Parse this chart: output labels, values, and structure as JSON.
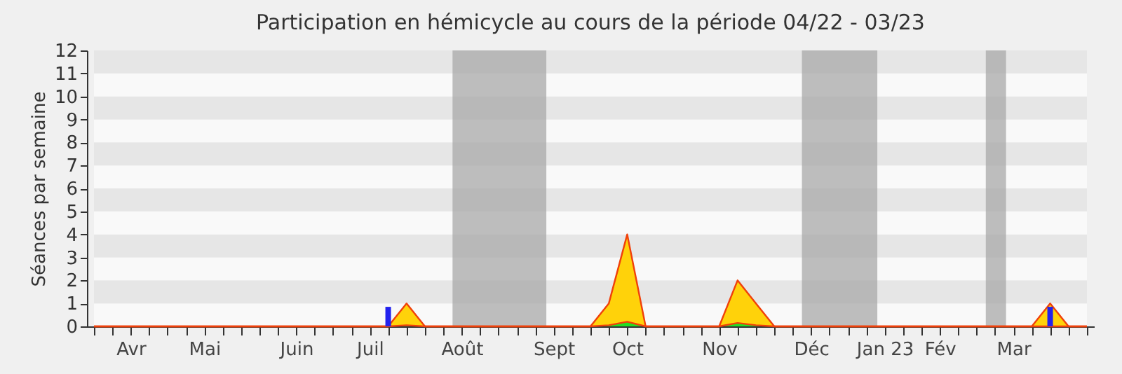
{
  "chart_data": {
    "type": "area",
    "title": "Participation en hémicycle au cours de la période 04/22 - 03/23",
    "ylabel": "Séances par semaine",
    "categories": [
      null,
      null,
      "Avr",
      null,
      null,
      null,
      "Mai",
      null,
      null,
      null,
      null,
      "Juin",
      null,
      null,
      null,
      "Juil",
      null,
      null,
      null,
      null,
      "Août",
      null,
      null,
      null,
      null,
      "Sept",
      null,
      null,
      null,
      "Oct",
      null,
      null,
      null,
      null,
      "Nov",
      null,
      null,
      null,
      null,
      "Déc",
      null,
      null,
      null,
      "Jan 23",
      null,
      null,
      "Fév",
      null,
      null,
      null,
      "Mar",
      null,
      null,
      null,
      null
    ],
    "ylim": [
      0,
      12
    ],
    "yticks": [
      0,
      1,
      2,
      3,
      4,
      5,
      6,
      7,
      8,
      9,
      10,
      11,
      12
    ],
    "series": [
      {
        "color": "#ffd20a",
        "values": [
          0,
          0,
          0,
          0,
          0,
          0,
          0,
          0,
          0,
          0,
          0,
          0,
          0,
          0,
          0,
          0,
          0,
          1,
          0,
          0,
          0,
          0,
          0,
          0,
          0,
          0,
          0,
          0,
          1,
          4,
          0,
          0,
          0,
          0,
          0,
          2,
          1,
          0,
          0,
          0,
          0,
          0,
          0,
          0,
          0,
          0,
          0,
          0,
          0,
          0,
          0,
          0,
          1,
          0,
          0
        ]
      },
      {
        "color": "#22e022",
        "values": [
          0,
          0,
          0,
          0,
          0,
          0,
          0,
          0,
          0,
          0,
          0,
          0,
          0,
          0,
          0,
          0,
          0,
          0.05,
          0,
          0,
          0,
          0,
          0,
          0,
          0,
          0,
          0,
          0,
          0.05,
          0.2,
          0,
          0,
          0,
          0,
          0,
          0.15,
          0.05,
          0,
          0,
          0,
          0,
          0,
          0,
          0,
          0,
          0,
          0,
          0,
          0,
          0,
          0,
          0,
          0,
          0,
          0
        ]
      },
      {
        "type": "bar",
        "color": "#2222ee",
        "values": [
          null,
          null,
          null,
          null,
          null,
          null,
          null,
          null,
          null,
          null,
          null,
          null,
          null,
          null,
          null,
          null,
          0.85,
          null,
          null,
          null,
          null,
          null,
          null,
          null,
          null,
          null,
          null,
          null,
          null,
          null,
          null,
          null,
          null,
          null,
          null,
          null,
          null,
          null,
          null,
          null,
          null,
          null,
          null,
          null,
          null,
          null,
          null,
          null,
          null,
          null,
          null,
          null,
          0.85,
          null,
          null
        ]
      }
    ]
  }
}
